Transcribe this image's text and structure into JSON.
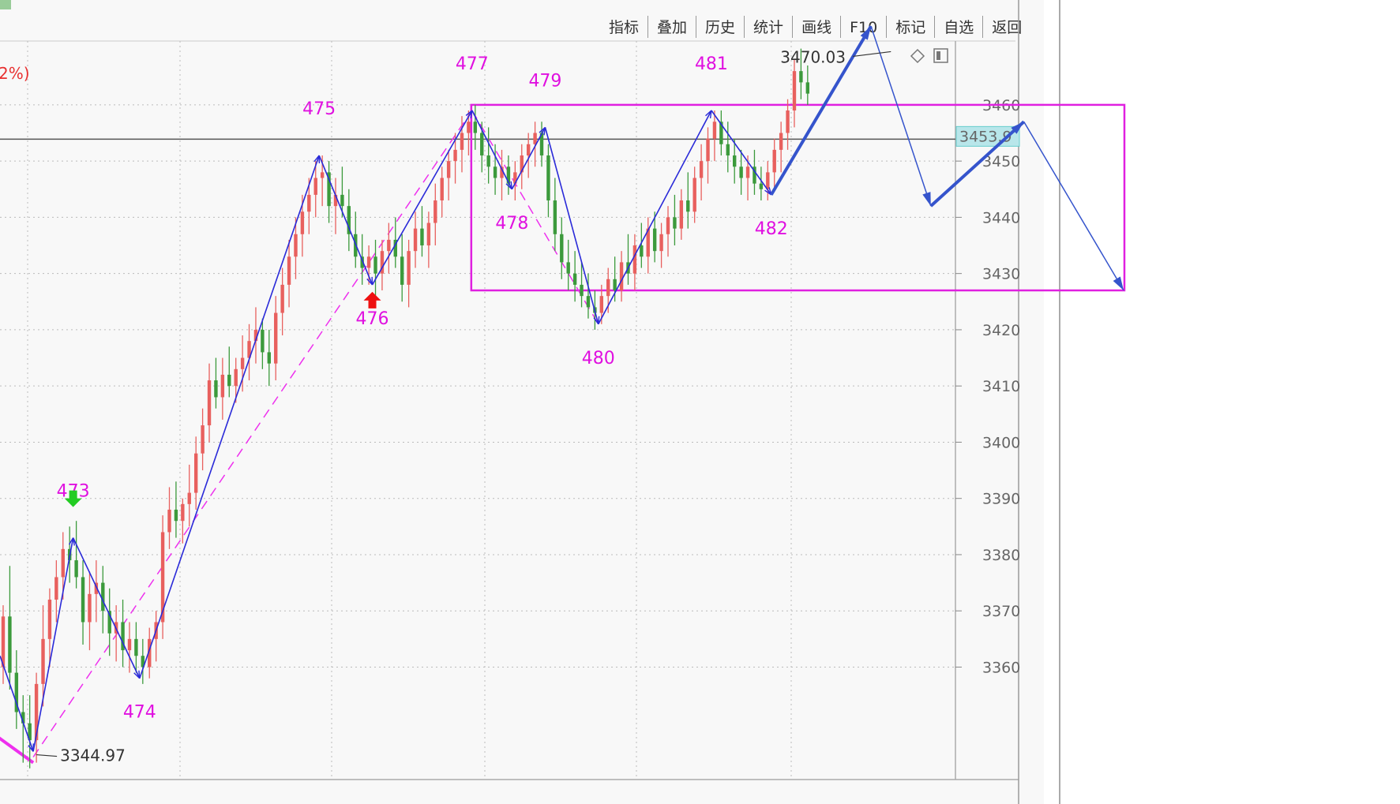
{
  "toolbar": [
    "指标",
    "叠加",
    "历史",
    "统计",
    "画线",
    "F10",
    "标记",
    "自选",
    "返回"
  ],
  "pct_text": "2%)",
  "current_price_text": "3453.9",
  "chart_data": {
    "type": "candlestick",
    "ylim": [
      3340,
      3475
    ],
    "y_ticks": [
      3360,
      3370,
      3380,
      3390,
      3400,
      3410,
      3420,
      3430,
      3440,
      3450,
      3460
    ],
    "current_price": 3453.9,
    "annotations": [
      {
        "text": "3470.03",
        "index": 134,
        "value": 3470.03
      },
      {
        "text": "3344.97",
        "index": 5,
        "value": 3344.97
      }
    ],
    "wave_points": [
      {
        "label": "473",
        "index": 11,
        "value": 3383
      },
      {
        "label": "474",
        "index": 21,
        "value": 3358
      },
      {
        "label": "475",
        "index": 48,
        "value": 3451
      },
      {
        "label": "476",
        "index": 56,
        "value": 3428
      },
      {
        "label": "477",
        "index": 71,
        "value": 3459
      },
      {
        "label": "478",
        "index": 77,
        "value": 3445
      },
      {
        "label": "479",
        "index": 82,
        "value": 3456
      },
      {
        "label": "480",
        "index": 90,
        "value": 3421
      },
      {
        "label": "481",
        "index": 107,
        "value": 3459
      },
      {
        "label": "482",
        "index": 116,
        "value": 3444
      }
    ],
    "signals": [
      {
        "type": "sell",
        "index": 11
      },
      {
        "type": "buy",
        "index": 56
      }
    ],
    "zigzag": [
      {
        "index": 0,
        "value": 3362
      },
      {
        "index": 5,
        "value": 3345
      },
      {
        "index": 11,
        "value": 3383
      },
      {
        "index": 21,
        "value": 3358
      },
      {
        "index": 48,
        "value": 3451
      },
      {
        "index": 56,
        "value": 3428
      },
      {
        "index": 71,
        "value": 3459
      },
      {
        "index": 77,
        "value": 3445
      },
      {
        "index": 82,
        "value": 3456
      },
      {
        "index": 90,
        "value": 3421
      },
      {
        "index": 107,
        "value": 3459
      },
      {
        "index": 116,
        "value": 3444
      }
    ],
    "projection": [
      {
        "index": 116,
        "value": 3444
      },
      {
        "index": 131,
        "value": 3474
      },
      {
        "index": 140,
        "value": 3442
      },
      {
        "index": 154,
        "value": 3457
      },
      {
        "index": 169,
        "value": 3427
      }
    ],
    "range_box": {
      "index_from": 71,
      "index_to": 169,
      "value_from": 3427,
      "value_to": 3460
    },
    "trendlines": [
      {
        "from": {
          "index": 5,
          "value": 3344
        },
        "to": {
          "index": 71,
          "value": 3459
        }
      },
      {
        "from": {
          "index": 71,
          "value": 3459
        },
        "to": {
          "index": 90,
          "value": 3421
        }
      },
      {
        "from": {
          "index": -2,
          "value": 3349
        },
        "to": {
          "index": 5,
          "value": 3343
        }
      }
    ],
    "candles": [
      [
        3360,
        3371,
        3357,
        3369
      ],
      [
        3369,
        3378,
        3356,
        3359
      ],
      [
        3359,
        3363,
        3349,
        3352
      ],
      [
        3352,
        3355,
        3343,
        3350
      ],
      [
        3350,
        3355,
        3342,
        3347
      ],
      [
        3347,
        3359,
        3343,
        3357
      ],
      [
        3357,
        3371,
        3353,
        3365
      ],
      [
        3365,
        3374,
        3360,
        3372
      ],
      [
        3372,
        3379,
        3368,
        3376
      ],
      [
        3376,
        3384,
        3372,
        3381
      ],
      [
        3381,
        3385,
        3375,
        3379
      ],
      [
        3379,
        3386,
        3374,
        3376
      ],
      [
        3376,
        3379,
        3364,
        3368
      ],
      [
        3368,
        3377,
        3363,
        3373
      ],
      [
        3373,
        3379,
        3368,
        3375
      ],
      [
        3375,
        3378,
        3366,
        3370
      ],
      [
        3370,
        3374,
        3362,
        3366
      ],
      [
        3366,
        3371,
        3361,
        3368
      ],
      [
        3368,
        3372,
        3360,
        3363
      ],
      [
        3363,
        3368,
        3359,
        3365
      ],
      [
        3365,
        3368,
        3359,
        3362
      ],
      [
        3362,
        3365,
        3357,
        3360
      ],
      [
        3360,
        3367,
        3358,
        3365
      ],
      [
        3365,
        3370,
        3361,
        3368
      ],
      [
        3368,
        3387,
        3365,
        3384
      ],
      [
        3384,
        3392,
        3381,
        3388
      ],
      [
        3388,
        3393,
        3383,
        3386
      ],
      [
        3386,
        3390,
        3382,
        3389
      ],
      [
        3389,
        3396,
        3385,
        3391
      ],
      [
        3391,
        3401,
        3388,
        3398
      ],
      [
        3398,
        3406,
        3395,
        3403
      ],
      [
        3403,
        3414,
        3400,
        3411
      ],
      [
        3411,
        3415,
        3406,
        3408
      ],
      [
        3408,
        3415,
        3404,
        3412
      ],
      [
        3412,
        3417,
        3408,
        3410
      ],
      [
        3410,
        3415,
        3407,
        3413
      ],
      [
        3413,
        3419,
        3409,
        3415
      ],
      [
        3415,
        3421,
        3411,
        3418
      ],
      [
        3418,
        3424,
        3414,
        3420
      ],
      [
        3420,
        3422,
        3413,
        3416
      ],
      [
        3416,
        3420,
        3410,
        3414
      ],
      [
        3414,
        3426,
        3411,
        3423
      ],
      [
        3423,
        3431,
        3419,
        3428
      ],
      [
        3428,
        3436,
        3424,
        3433
      ],
      [
        3433,
        3440,
        3429,
        3437
      ],
      [
        3437,
        3444,
        3433,
        3441
      ],
      [
        3441,
        3447,
        3437,
        3444
      ],
      [
        3444,
        3450,
        3440,
        3447
      ],
      [
        3447,
        3451,
        3442,
        3448
      ],
      [
        3448,
        3450,
        3439,
        3442
      ],
      [
        3442,
        3447,
        3437,
        3444
      ],
      [
        3444,
        3449,
        3440,
        3442
      ],
      [
        3442,
        3445,
        3434,
        3437
      ],
      [
        3437,
        3441,
        3431,
        3433
      ],
      [
        3433,
        3437,
        3428,
        3431
      ],
      [
        3431,
        3435,
        3428,
        3433
      ],
      [
        3433,
        3436,
        3426,
        3430
      ],
      [
        3430,
        3436,
        3427,
        3434
      ],
      [
        3434,
        3439,
        3430,
        3436
      ],
      [
        3436,
        3440,
        3431,
        3433
      ],
      [
        3433,
        3437,
        3425,
        3428
      ],
      [
        3428,
        3436,
        3424,
        3434
      ],
      [
        3434,
        3441,
        3431,
        3438
      ],
      [
        3438,
        3442,
        3433,
        3435
      ],
      [
        3435,
        3441,
        3431,
        3439
      ],
      [
        3439,
        3446,
        3435,
        3443
      ],
      [
        3443,
        3449,
        3440,
        3447
      ],
      [
        3447,
        3452,
        3443,
        3450
      ],
      [
        3450,
        3455,
        3446,
        3452
      ],
      [
        3452,
        3458,
        3448,
        3455
      ],
      [
        3455,
        3459,
        3451,
        3457
      ],
      [
        3457,
        3460,
        3452,
        3455
      ],
      [
        3455,
        3457,
        3448,
        3451
      ],
      [
        3451,
        3456,
        3446,
        3449
      ],
      [
        3449,
        3453,
        3444,
        3447
      ],
      [
        3447,
        3452,
        3443,
        3449
      ],
      [
        3449,
        3451,
        3444,
        3446
      ],
      [
        3446,
        3450,
        3443,
        3448
      ],
      [
        3448,
        3453,
        3445,
        3451
      ],
      [
        3451,
        3455,
        3447,
        3453
      ],
      [
        3453,
        3457,
        3449,
        3455
      ],
      [
        3455,
        3457,
        3449,
        3451
      ],
      [
        3451,
        3453,
        3440,
        3443
      ],
      [
        3443,
        3447,
        3434,
        3437
      ],
      [
        3437,
        3440,
        3429,
        3432
      ],
      [
        3432,
        3436,
        3427,
        3430
      ],
      [
        3430,
        3434,
        3425,
        3428
      ],
      [
        3428,
        3432,
        3424,
        3426
      ],
      [
        3426,
        3430,
        3422,
        3424
      ],
      [
        3424,
        3427,
        3420,
        3423
      ],
      [
        3423,
        3428,
        3421,
        3426
      ],
      [
        3426,
        3431,
        3423,
        3429
      ],
      [
        3429,
        3433,
        3425,
        3427
      ],
      [
        3427,
        3434,
        3425,
        3432
      ],
      [
        3432,
        3437,
        3428,
        3430
      ],
      [
        3430,
        3437,
        3427,
        3435
      ],
      [
        3435,
        3439,
        3431,
        3433
      ],
      [
        3433,
        3440,
        3430,
        3438
      ],
      [
        3438,
        3441,
        3432,
        3434
      ],
      [
        3434,
        3439,
        3431,
        3437
      ],
      [
        3437,
        3442,
        3433,
        3440
      ],
      [
        3440,
        3444,
        3435,
        3438
      ],
      [
        3438,
        3445,
        3436,
        3443
      ],
      [
        3443,
        3448,
        3438,
        3441
      ],
      [
        3441,
        3449,
        3439,
        3447
      ],
      [
        3447,
        3453,
        3443,
        3450
      ],
      [
        3450,
        3456,
        3446,
        3454
      ],
      [
        3454,
        3459,
        3450,
        3457
      ],
      [
        3457,
        3459,
        3451,
        3453
      ],
      [
        3453,
        3457,
        3448,
        3451
      ],
      [
        3451,
        3454,
        3446,
        3449
      ],
      [
        3449,
        3452,
        3444,
        3447
      ],
      [
        3447,
        3451,
        3443,
        3449
      ],
      [
        3449,
        3452,
        3444,
        3446
      ],
      [
        3446,
        3449,
        3443,
        3445
      ],
      [
        3445,
        3450,
        3443,
        3448
      ],
      [
        3448,
        3454,
        3445,
        3452
      ],
      [
        3452,
        3457,
        3448,
        3455
      ],
      [
        3455,
        3461,
        3452,
        3459
      ],
      [
        3459,
        3468,
        3456,
        3466
      ],
      [
        3466,
        3470,
        3461,
        3464
      ],
      [
        3464,
        3467,
        3460,
        3462
      ]
    ]
  }
}
